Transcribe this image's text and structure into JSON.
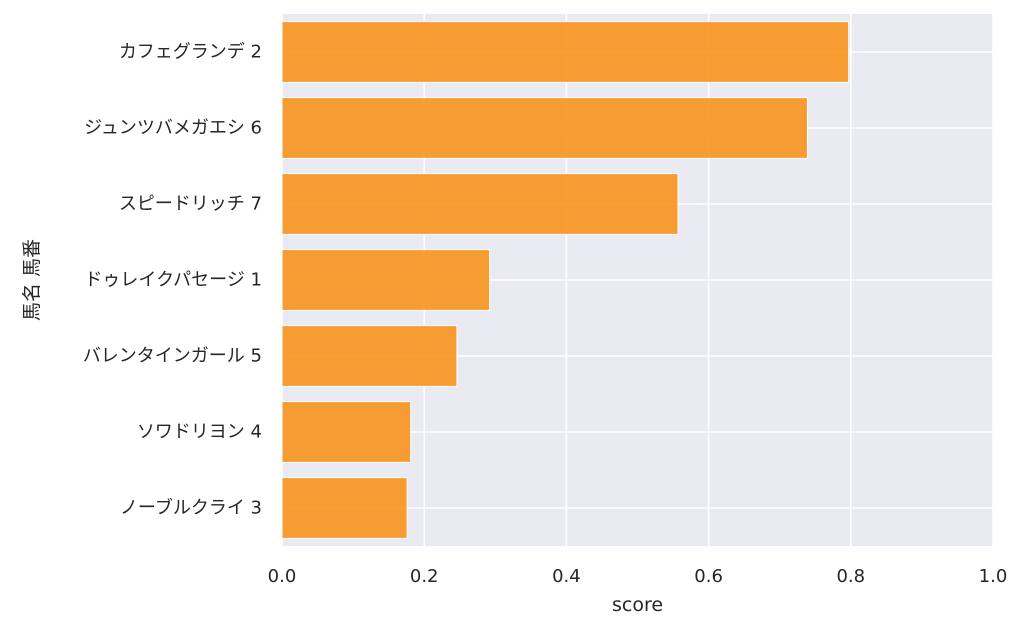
{
  "chart_data": {
    "type": "bar",
    "orientation": "horizontal",
    "categories": [
      "カフェグランデ 2",
      "ジュンツバメガエシ 6",
      "スピードリッチ 7",
      "ドゥレイクパセージ 1",
      "バレンタインガール 5",
      "ソワドリヨン 4",
      "ノーブルクライ 3"
    ],
    "values": [
      0.797,
      0.739,
      0.557,
      0.292,
      0.246,
      0.181,
      0.176
    ],
    "xlabel": "score",
    "ylabel": "馬名 馬番",
    "xlim": [
      0.0,
      1.0
    ],
    "xticks": [
      "0.0",
      "0.2",
      "0.4",
      "0.6",
      "0.8",
      "1.0"
    ],
    "grid": true,
    "bar_color": "#f7941d",
    "background_color": "#eaeaf2",
    "gridline_color": "#ffffff"
  }
}
